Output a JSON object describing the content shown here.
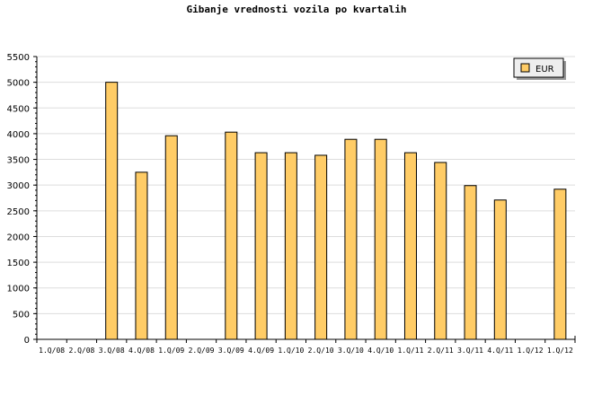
{
  "chart_data": {
    "type": "bar",
    "title": "Gibanje vrednosti vozila po kvartalih",
    "xlabel": "",
    "ylabel": "",
    "categories": [
      "1.Q/08",
      "2.Q/08",
      "3.Q/08",
      "4.Q/08",
      "1.Q/09",
      "2.Q/09",
      "3.Q/09",
      "4.Q/09",
      "1.Q/10",
      "2.Q/10",
      "3.Q/10",
      "4.Q/10",
      "1.Q/11",
      "2.Q/11",
      "3.Q/11",
      "4.Q/11",
      "1.Q/12",
      "1.Q/12"
    ],
    "series": [
      {
        "name": "EUR",
        "color": "#ffcc66",
        "values": [
          null,
          null,
          5000,
          3250,
          3960,
          null,
          4030,
          3630,
          3630,
          3580,
          3890,
          3890,
          3630,
          3440,
          2990,
          2710,
          null,
          2920
        ]
      }
    ],
    "ylim": [
      0,
      5500
    ],
    "yticks": [
      0,
      500,
      1000,
      1500,
      2000,
      2500,
      3000,
      3500,
      4000,
      4500,
      5000,
      5500
    ],
    "grid": true,
    "legend": "top-right"
  }
}
